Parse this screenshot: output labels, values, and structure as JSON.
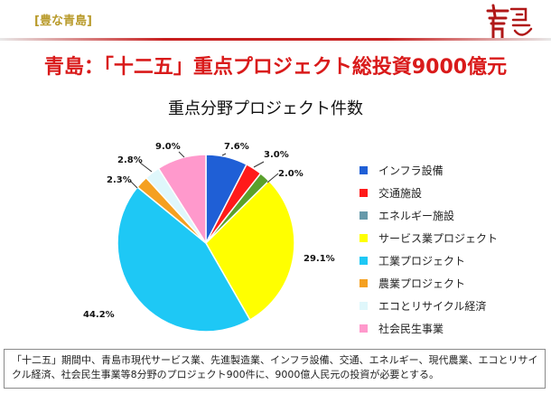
{
  "header": {
    "tag": "[豊な青島]",
    "logo_text": "青島",
    "title": "青島：「十二五」重点プロジェクト総投資9000億元"
  },
  "chart_data": {
    "type": "pie",
    "title": "重点分野プロジェクト件数",
    "legend_position": "right",
    "series": [
      {
        "name": "インフラ設備",
        "value": 7.6,
        "label": "7.6%",
        "color": "#1f5fd6"
      },
      {
        "name": "交通施設",
        "value": 3.0,
        "label": "3.0%",
        "color": "#ff1a1a"
      },
      {
        "name": "エネルギー施設",
        "value": 2.0,
        "label": "2.0%",
        "color": "#5aa02c"
      },
      {
        "name": "サービス業プロジェクト",
        "value": 29.1,
        "label": "29.1%",
        "color": "#ffff00"
      },
      {
        "name": "工業プロジェクト",
        "value": 44.2,
        "label": "44.2%",
        "color": "#1ec8f5"
      },
      {
        "name": "農業プロジェクト",
        "value": 2.3,
        "label": "2.3%",
        "color": "#f5a020"
      },
      {
        "name": "エコとリサイクル経済",
        "value": 2.8,
        "label": "2.8%",
        "color": "#dff7fb"
      },
      {
        "name": "社会民生事業",
        "value": 9.0,
        "label": "9.0%",
        "color": "#ff99cc"
      }
    ],
    "legend_colors": [
      "#1f5fd6",
      "#ff1a1a",
      "#6699aa",
      "#ffff00",
      "#1ec8f5",
      "#f5a020",
      "#dff7fb",
      "#ff99cc"
    ]
  },
  "footer": {
    "text": "「十二五」期間中、青島市現代サービス業、先進製造業、インフラ設備、交通、エネルギー、現代農業、エコとリサイクル経済、社会民生事業等8分野のプロジェクト900件に、9000億人民元の投資が必要とする。"
  }
}
